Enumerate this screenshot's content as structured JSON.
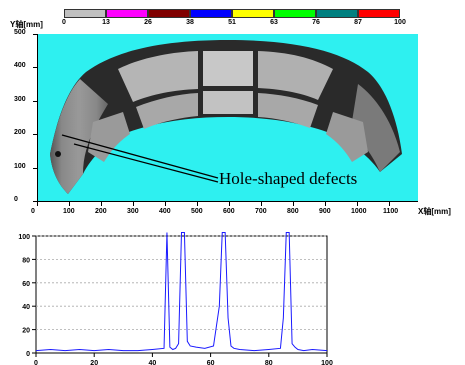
{
  "colorbar": {
    "cells": [
      {
        "color": "#c0c0c0",
        "label": "0"
      },
      {
        "color": "#ff00ff",
        "label": "13"
      },
      {
        "color": "#800000",
        "label": "26"
      },
      {
        "color": "#0000ff",
        "label": "38"
      },
      {
        "color": "#ffff00",
        "label": "51"
      },
      {
        "color": "#00ff00",
        "label": "63"
      },
      {
        "color": "#008080",
        "label": "76"
      },
      {
        "color": "#ff0000",
        "label": "87"
      },
      {
        "color": "",
        "label": "100"
      }
    ]
  },
  "top_plot": {
    "y_axis_label": "Y轴[mm]",
    "x_axis_label": "X轴[mm]",
    "y_ticks": [
      "500",
      "400",
      "300",
      "200",
      "100",
      "0"
    ],
    "x_ticks": [
      "0",
      "100",
      "200",
      "300",
      "400",
      "500",
      "600",
      "700",
      "800",
      "900",
      "1000",
      "1100"
    ],
    "background_color": "#2ef0f0",
    "annotation": "Hole-shaped defects"
  },
  "bottom_plot": {
    "y_ticks": [
      "100",
      "80",
      "60",
      "40",
      "20",
      "0"
    ],
    "x_ticks": [
      "0",
      "20",
      "40",
      "60",
      "80",
      "100"
    ]
  },
  "chart_data": {
    "type": "line",
    "title": "",
    "xlabel": "",
    "ylabel": "",
    "xlim": [
      0,
      100
    ],
    "ylim": [
      0,
      100
    ],
    "grid": true,
    "series": [
      {
        "color": "#1a1aff",
        "x": [
          0,
          5,
          10,
          15,
          20,
          25,
          30,
          35,
          40,
          44,
          45,
          46,
          47,
          48,
          49,
          50,
          51,
          52,
          53,
          55,
          58,
          61,
          63,
          64,
          65,
          66,
          67,
          68,
          70,
          75,
          80,
          84,
          85,
          86,
          87,
          88,
          89,
          90,
          92,
          95,
          100
        ],
        "y": [
          2,
          3,
          2,
          3,
          2,
          3,
          2,
          2,
          3,
          4,
          110,
          5,
          3,
          4,
          8,
          110,
          110,
          10,
          6,
          5,
          4,
          6,
          40,
          110,
          110,
          30,
          6,
          4,
          3,
          2,
          3,
          4,
          30,
          110,
          110,
          8,
          5,
          3,
          2,
          3,
          2
        ]
      }
    ]
  }
}
